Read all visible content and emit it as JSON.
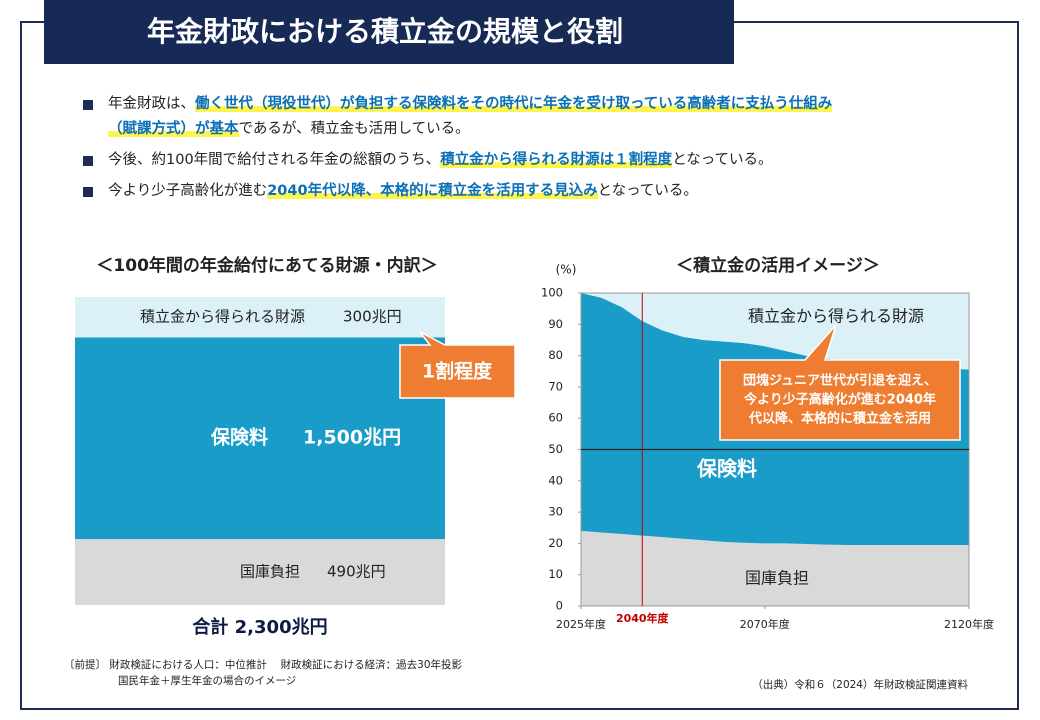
{
  "header": {
    "title": "年金財政における積立金の規模と役割"
  },
  "bullets": [
    [
      "年金財政は、",
      "働く世代（現役世代）が負担する保険料をその時代に年金を受け取っている高齢者に支払う仕組み（賦課方式）が基本",
      "であるが、積立金も活用している。"
    ],
    [
      "今後、約100年間で給付される年金の総額のうち、",
      "積立金から得られる財源は１割程度",
      "となっている。"
    ],
    [
      "今より少子高齢化が進む",
      "2040年代以降、本格的に積立金を活用する見込み",
      "となっている。"
    ]
  ],
  "chart_data": [
    {
      "type": "stackedbar",
      "title": "＜100年間の年金給付にあてる財源・内訳＞",
      "series": [
        {
          "name": "国庫負担",
          "color": "#d9d9d9",
          "values": [
            490
          ],
          "value_labels": [
            "490兆円"
          ]
        },
        {
          "name": "保険料",
          "color": "#1a9cc9",
          "values": [
            1500
          ],
          "value_labels": [
            "1,500兆円"
          ]
        },
        {
          "name": "積立金から得られる財源",
          "color": "#dcf0f7",
          "values": [
            300
          ],
          "value_labels": [
            "300兆円"
          ]
        }
      ],
      "annotation": "1割程度",
      "total_label": "合計 2,300兆円"
    },
    {
      "type": "area",
      "title": "＜積立金の活用イメージ＞",
      "y_label": "(%)",
      "x": [
        2025,
        2030,
        2035,
        2040,
        2045,
        2050,
        2055,
        2060,
        2065,
        2070,
        2075,
        2080,
        2085,
        2090,
        2095,
        2100,
        2105,
        2110,
        2115,
        2120
      ],
      "xlim": [
        2025,
        2120
      ],
      "xticks": [
        {
          "value": 2025,
          "label": "2025年度"
        },
        {
          "value": 2070,
          "label": "2070年度"
        },
        {
          "value": 2120,
          "label": "2120年度"
        }
      ],
      "marker": {
        "value": 2040,
        "label": "2040年度",
        "color": "#c00000"
      },
      "ylim": [
        0,
        100
      ],
      "yticks": [
        0,
        10,
        20,
        30,
        40,
        50,
        60,
        70,
        80,
        90,
        100
      ],
      "reference_line": 50,
      "series": [
        {
          "name": "国庫負担",
          "color": "#d9d9d9",
          "values": [
            24,
            23.5,
            23,
            22.5,
            22,
            21.5,
            21,
            20.5,
            20.2,
            20,
            20,
            19.8,
            19.6,
            19.5,
            19.5,
            19.5,
            19.5,
            19.5,
            19.5,
            19.5
          ]
        },
        {
          "name": "保険料",
          "color": "#1a9cc9",
          "values": [
            76,
            75,
            72.5,
            68.5,
            66,
            64.5,
            64,
            64,
            63.8,
            63,
            61.5,
            60.2,
            59.4,
            59,
            58.5,
            58,
            57.5,
            57,
            56.5,
            56
          ]
        },
        {
          "name": "積立金から得られる財源",
          "color": "#dcf0f7",
          "values": [
            0,
            1.5,
            4.5,
            9,
            12,
            14,
            15,
            15.5,
            16,
            17,
            18.5,
            20,
            21,
            21.5,
            22,
            22.5,
            23,
            23.5,
            24,
            24.5
          ]
        }
      ],
      "annotation": [
        "団塊ジュニア世代が引退を迎え、",
        "今より少子高齢化が進む2040年",
        "代以降、本格的に積立金を活用"
      ]
    }
  ],
  "footnotes": [
    "〔前提〕 財政検証における人口：中位推計　 財政検証における経済：過去30年投影",
    "国民年金＋厚生年金の場合のイメージ"
  ],
  "source": "（出典）令和６（2024）年財政検証関連資料"
}
